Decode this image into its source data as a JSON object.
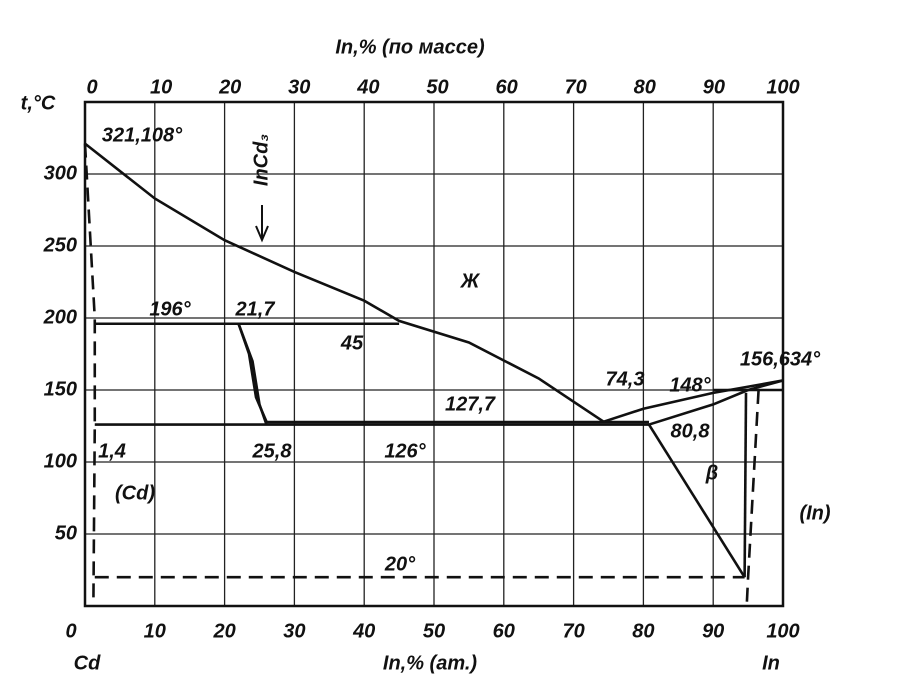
{
  "chart_data": {
    "type": "line",
    "title": "In,% (по массе)",
    "xlabel": "In,% (ат.)",
    "ylabel": "t,°C",
    "xlim": [
      0,
      100
    ],
    "xticks": [
      0,
      10,
      20,
      30,
      40,
      50,
      60,
      70,
      80,
      90,
      100
    ],
    "x2lim": [
      0,
      100
    ],
    "x2ticks": [
      0,
      10,
      20,
      30,
      40,
      50,
      60,
      70,
      80,
      90,
      100
    ],
    "ylim": [
      0,
      350
    ],
    "yticks": [
      50,
      100,
      150,
      200,
      250,
      300
    ],
    "grid": true,
    "end_labels": [
      "Cd",
      "In"
    ],
    "annotations": [
      "321,108°",
      "InCd₃",
      "Ж",
      "196°",
      "21,7",
      "45",
      "74,3",
      "148°",
      "156,634°",
      "127,7",
      "1,4",
      "25,8",
      "126°",
      "80,8",
      "β",
      "(Cd)",
      "(In)",
      "20°"
    ],
    "series": [
      {
        "color": "#111111",
        "dash": false,
        "x": [
          0,
          10,
          20,
          30,
          40,
          45,
          55,
          65,
          74.3
        ],
        "values": [
          321.108,
          283,
          254,
          232,
          212,
          198,
          183,
          158,
          128
        ]
      },
      {
        "color": "#111111",
        "dash": false,
        "x": [
          74.3,
          80,
          90,
          100
        ],
        "values": [
          128,
          137,
          148,
          156.634
        ]
      },
      {
        "color": "#111111",
        "dash": false,
        "x": [
          80.8,
          90,
          95,
          100
        ],
        "values": [
          126,
          140,
          150,
          156.634
        ]
      },
      {
        "color": "#111111",
        "dash": false,
        "x": [
          1.4,
          45
        ],
        "values": [
          196,
          196
        ]
      },
      {
        "color": "#111111",
        "dash": false,
        "x": [
          22,
          24,
          25,
          26
        ],
        "values": [
          196,
          170,
          140,
          126
        ]
      },
      {
        "color": "#111111",
        "dash": false,
        "x": [
          22,
          23.5,
          24.5,
          26
        ],
        "values": [
          196,
          175,
          145,
          128
        ]
      },
      {
        "color": "#111111",
        "dash": false,
        "x": [
          26,
          80.8
        ],
        "values": [
          127.7,
          127.7
        ]
      },
      {
        "color": "#111111",
        "dash": false,
        "x": [
          1.4,
          80.8
        ],
        "values": [
          126,
          126
        ]
      },
      {
        "color": "#111111",
        "dash": false,
        "x": [
          80.8,
          94.5
        ],
        "values": [
          126,
          20
        ]
      },
      {
        "color": "#111111",
        "dash": false,
        "x": [
          94.5,
          94.7
        ],
        "values": [
          20,
          148
        ]
      },
      {
        "color": "#111111",
        "dash": false,
        "x": [
          90,
          100
        ],
        "values": [
          150,
          150
        ]
      },
      {
        "color": "#111111",
        "dash": true,
        "x": [
          1.4,
          94.5
        ],
        "values": [
          20,
          20
        ]
      },
      {
        "color": "#111111",
        "dash": true,
        "x": [
          0,
          1.4,
          1.4,
          1.2
        ],
        "values": [
          321.108,
          200,
          126,
          0
        ]
      },
      {
        "color": "#111111",
        "dash": true,
        "x": [
          96.5,
          95,
          94.8
        ],
        "values": [
          150,
          20,
          0
        ]
      }
    ]
  }
}
